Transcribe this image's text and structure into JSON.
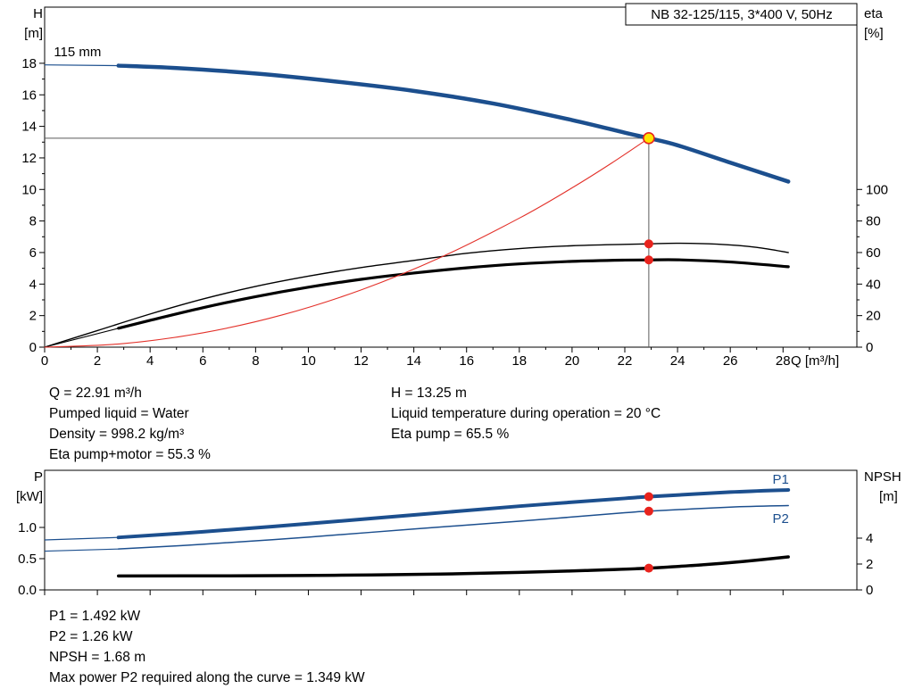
{
  "colors": {
    "blue": "#1c4f8e",
    "black": "#000000",
    "red": "#e3312a",
    "marker_red": "#e8231d",
    "op_fill": "#ffe400",
    "crosshair": "#5a5a5a"
  },
  "info_top": {
    "col1": [
      "Q = 22.91 m³/h",
      "Pumped liquid = Water",
      "Density = 998.2 kg/m³",
      "Eta pump+motor = 55.3 %"
    ],
    "col2": [
      "H = 13.25 m",
      "Liquid temperature during operation = 20 °C",
      "Eta pump = 65.5 %"
    ]
  },
  "info_bottom": [
    "P1 = 1.492 kW",
    "P2 = 1.26 kW",
    "NPSH = 1.68 m",
    "Max power P2 required along the curve = 1.349 kW"
  ],
  "chart_data": [
    {
      "type": "line",
      "name": "hq-eta-chart",
      "title": "NB 32-125/115, 3*400 V, 50Hz",
      "xlabel": "Q [m³/h]",
      "ylabel": [
        "H",
        "[m]"
      ],
      "y2label": [
        "eta",
        "[%]"
      ],
      "y2label_dx": [
        0,
        0
      ],
      "xlim": [
        0,
        30.8
      ],
      "ylim": [
        0,
        21.56
      ],
      "y2lim": [
        0,
        215.6
      ],
      "xticks": [
        0,
        2,
        4,
        6,
        8,
        10,
        12,
        14,
        16,
        18,
        20,
        22,
        24,
        26,
        28
      ],
      "xminor": [
        1,
        3,
        5,
        7,
        9,
        11,
        13,
        15,
        17,
        19,
        21,
        23,
        25,
        27,
        29
      ],
      "yticks": [
        {
          "v": 0,
          "t": "0"
        },
        {
          "v": 2,
          "t": "2"
        },
        {
          "v": 4,
          "t": "4"
        },
        {
          "v": 6,
          "t": "6"
        },
        {
          "v": 8,
          "t": "8"
        },
        {
          "v": 10,
          "t": "10"
        },
        {
          "v": 12,
          "t": "12"
        },
        {
          "v": 14,
          "t": "14"
        },
        {
          "v": 16,
          "t": "16"
        },
        {
          "v": 18,
          "t": "18"
        }
      ],
      "yminor": [
        1,
        3,
        5,
        7,
        9,
        11,
        13,
        15,
        17
      ],
      "y2ticks": [
        {
          "v": 0,
          "t": "0"
        },
        {
          "v": 20,
          "t": "20"
        },
        {
          "v": 40,
          "t": "40"
        },
        {
          "v": 60,
          "t": "60"
        },
        {
          "v": 80,
          "t": "80"
        },
        {
          "v": 100,
          "t": "100"
        }
      ],
      "y2minor": [
        10,
        30,
        50,
        70,
        90
      ],
      "annotation": {
        "text": "115 mm",
        "x": 0.35,
        "y": 18.45
      },
      "crosshair": {
        "x": 22.91,
        "y": 13.25
      },
      "operating_point": {
        "x": 22.91,
        "y": 13.25
      },
      "markers": [
        {
          "x": 22.91,
          "y": 65.5,
          "axis": "y2"
        },
        {
          "x": 22.91,
          "y": 55.3,
          "axis": "y2"
        }
      ],
      "series": [
        {
          "name": "eta-pump-curve",
          "axis": "y2",
          "color": "#000000",
          "width": 1.4,
          "x": [
            0,
            2,
            4,
            6,
            8,
            10,
            12,
            14,
            16,
            18,
            20,
            22,
            22.91,
            24,
            25.5,
            27,
            28.2
          ],
          "y": [
            0,
            10.5,
            21,
            30.5,
            38.5,
            45,
            50.5,
            55,
            59.5,
            62.5,
            64.3,
            65.2,
            65.5,
            65.9,
            65.3,
            63.3,
            60
          ]
        },
        {
          "name": "eta-pump-motor-curve",
          "axis": "y2",
          "color": "#000000",
          "width": 3.2,
          "lead": {
            "x": [
              0,
              2.8
            ],
            "y": [
              0,
              12
            ],
            "width": 1.1
          },
          "x": [
            2.8,
            4,
            6,
            8,
            10,
            12,
            14,
            16,
            18,
            20,
            22,
            22.91,
            24,
            26,
            28.2
          ],
          "y": [
            12,
            17,
            25,
            32,
            38,
            43,
            47,
            50.3,
            52.8,
            54.4,
            55.2,
            55.3,
            55.4,
            54,
            51
          ]
        },
        {
          "name": "system-curve",
          "axis": "y",
          "color": "#e3312a",
          "width": 1.1,
          "x": [
            0,
            3,
            6,
            9,
            12,
            15,
            18,
            20,
            21.5,
            22.91
          ],
          "y": [
            0,
            0.23,
            0.91,
            2.04,
            3.63,
            5.68,
            8.18,
            10.1,
            11.67,
            13.25
          ]
        },
        {
          "name": "head-curve-115mm",
          "axis": "y",
          "color": "#1c4f8e",
          "width": 4.5,
          "lead": {
            "x": [
              0,
              2.8
            ],
            "y": [
              17.9,
              17.85
            ],
            "width": 1.2
          },
          "x": [
            2.8,
            5,
            8,
            11,
            14,
            17,
            20,
            22,
            22.91,
            24,
            26,
            28.2
          ],
          "y": [
            17.85,
            17.7,
            17.35,
            16.85,
            16.25,
            15.45,
            14.4,
            13.6,
            13.25,
            12.8,
            11.7,
            10.5
          ]
        }
      ]
    },
    {
      "type": "line",
      "name": "power-npsh-chart",
      "ylabel": [
        "P",
        "[kW]"
      ],
      "y2label": [
        "NPSH",
        "[m]"
      ],
      "y2label_dx": [
        0,
        17
      ],
      "xlim": [
        0,
        30.8
      ],
      "ylim": [
        0,
        1.914
      ],
      "y2lim": [
        0,
        9.241
      ],
      "xticks": [
        0,
        2,
        4,
        6,
        8,
        10,
        12,
        14,
        16,
        18,
        20,
        22,
        24,
        26,
        28
      ],
      "yticks": [
        {
          "v": 0,
          "t": "0.0"
        },
        {
          "v": 0.5,
          "t": "0.5"
        },
        {
          "v": 1,
          "t": "1.0"
        }
      ],
      "y2ticks": [
        {
          "v": 0,
          "t": "0"
        },
        {
          "v": 2,
          "t": "2"
        },
        {
          "v": 4,
          "t": "4"
        }
      ],
      "markers": [
        {
          "x": 22.91,
          "y": 1.492,
          "axis": "y"
        },
        {
          "x": 22.91,
          "y": 1.26,
          "axis": "y"
        },
        {
          "x": 22.91,
          "y": 1.68,
          "axis": "y2"
        }
      ],
      "series": [
        {
          "name": "p1-curve",
          "label": "P1",
          "label_xy": [
            27.6,
            1.7
          ],
          "axis": "y",
          "color": "#1c4f8e",
          "width": 4,
          "lead": {
            "x": [
              0,
              2.8
            ],
            "y": [
              0.8,
              0.84
            ],
            "width": 1.2
          },
          "x": [
            2.8,
            6,
            10,
            14,
            18,
            22,
            22.91,
            26,
            28.2
          ],
          "y": [
            0.84,
            0.93,
            1.06,
            1.2,
            1.34,
            1.465,
            1.492,
            1.565,
            1.6
          ]
        },
        {
          "name": "p2-curve",
          "label": "P2",
          "label_xy": [
            27.6,
            1.07
          ],
          "axis": "y",
          "color": "#1c4f8e",
          "width": 1.5,
          "lead": {
            "x": [
              0,
              2.8
            ],
            "y": [
              0.62,
              0.655
            ],
            "width": 1.1
          },
          "x": [
            2.8,
            6,
            10,
            14,
            18,
            22,
            22.91,
            26,
            28.2
          ],
          "y": [
            0.655,
            0.73,
            0.845,
            0.975,
            1.1,
            1.235,
            1.26,
            1.325,
            1.349
          ]
        },
        {
          "name": "npsh-curve",
          "axis": "y2",
          "color": "#000000",
          "width": 3.5,
          "x": [
            2.8,
            7,
            11,
            15,
            18,
            20.5,
            22.91,
            25,
            26.5,
            28.2
          ],
          "y": [
            1.08,
            1.09,
            1.13,
            1.22,
            1.35,
            1.5,
            1.68,
            1.95,
            2.2,
            2.55
          ]
        }
      ]
    }
  ]
}
